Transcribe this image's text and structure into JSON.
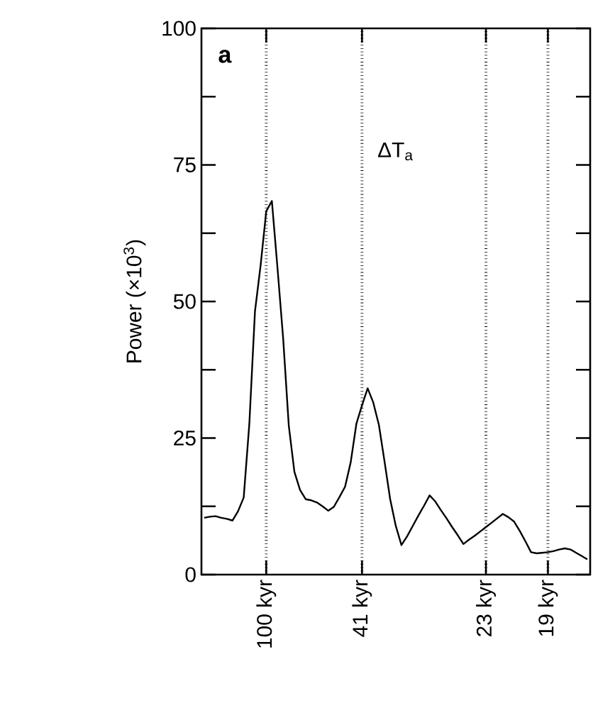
{
  "chart_data": {
    "type": "line",
    "ylabel": "Power (×10$^{3}$)",
    "annotations": [
      "a",
      "ΔT$_{a}$"
    ],
    "categories": [
      null,
      null,
      null,
      null,
      null,
      null,
      null,
      null,
      null,
      null,
      null,
      "100 kyr",
      null,
      null,
      null,
      null,
      null,
      null,
      null,
      null,
      null,
      null,
      null,
      null,
      null,
      null,
      null,
      null,
      "41 kyr",
      null,
      null,
      null,
      null,
      null,
      null,
      null,
      null,
      null,
      null,
      null,
      null,
      null,
      null,
      null,
      null,
      null,
      null,
      null,
      null,
      null,
      "23 kyr",
      null,
      null,
      null,
      null,
      null,
      null,
      null,
      null,
      null,
      null,
      "19 kyr",
      null,
      null,
      null,
      null,
      null,
      null,
      null
    ],
    "series": [
      {
        "color": "#000000",
        "values": [
          10.4,
          10.6,
          10.7,
          10.4,
          10.2,
          9.9,
          11.6,
          14.1,
          27.6,
          48.2,
          56.6,
          66.5,
          68.4,
          56.1,
          43.3,
          27.3,
          18.8,
          15.5,
          13.8,
          13.6,
          13.2,
          12.5,
          11.7,
          12.4,
          14.2,
          16.1,
          20.6,
          27.6,
          31.0,
          34.1,
          31.5,
          27.4,
          20.7,
          13.8,
          8.9,
          5.4,
          7.0,
          8.9,
          10.8,
          12.6,
          14.5,
          13.4,
          11.8,
          10.3,
          8.7,
          7.2,
          5.6,
          6.4,
          7.1,
          7.9,
          8.7,
          9.5,
          10.3,
          11.1,
          10.5,
          9.7,
          8.0,
          6.1,
          4.1,
          3.9,
          4.0,
          4.1,
          4.3,
          4.6,
          4.8,
          4.6,
          4.0,
          3.4,
          2.8
        ]
      }
    ],
    "ylim": [
      0,
      100
    ],
    "yticks": [
      0,
      {
        "value": 12.5,
        "label": null
      },
      25,
      {
        "value": 37.5,
        "label": null
      },
      50,
      {
        "value": 62.5,
        "label": null
      },
      75,
      {
        "value": 87.5,
        "label": null
      },
      100
    ],
    "grid": "x",
    "marker": "none",
    "line_style": "solid"
  }
}
